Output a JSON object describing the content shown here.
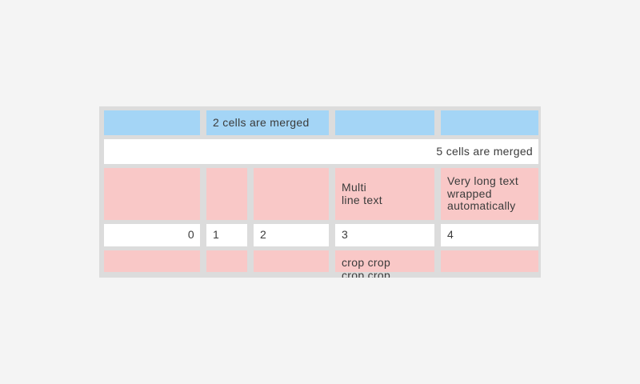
{
  "window": {
    "background_color": "#f4f4f4"
  },
  "palette": {
    "table_background": "#dcdcdc",
    "cell_blue": "#a4d5f6",
    "cell_pink": "#f9c8c7",
    "cell_white": "#ffffff",
    "text_color": "#3b3b3b"
  },
  "table": {
    "rows": [
      {
        "cells": [
          {
            "text": ""
          },
          {
            "text": "2 cells are merged"
          },
          {
            "text": ""
          },
          {
            "text": ""
          }
        ]
      },
      {
        "cells": [
          {
            "text": "5 cells are merged"
          }
        ]
      },
      {
        "cells": [
          {
            "text": ""
          },
          {
            "text": ""
          },
          {
            "text": ""
          },
          {
            "text": "Multi\nline text"
          },
          {
            "text": "Very long text wrapped automatically"
          }
        ]
      },
      {
        "cells": [
          {
            "text": "0"
          },
          {
            "text": "1"
          },
          {
            "text": "2"
          },
          {
            "text": "3"
          },
          {
            "text": "4"
          }
        ]
      },
      {
        "cells": [
          {
            "text": ""
          },
          {
            "text": ""
          },
          {
            "text": ""
          },
          {
            "text": "crop crop crop crop"
          },
          {
            "text": ""
          }
        ]
      }
    ]
  }
}
